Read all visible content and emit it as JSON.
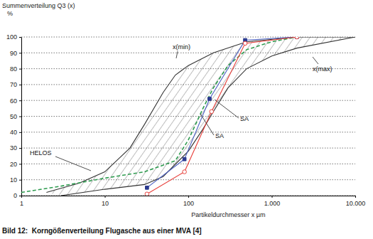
{
  "chart_data": {
    "type": "line",
    "title": "Bild 12:  Korngößenverteilung Flugasche aus einer MVA [4]",
    "ylabel": [
      "Summenverteilung Q3 (x)",
      "%"
    ],
    "xlabel": "Partikeldurchmesser x µm",
    "log": "x",
    "grid": true,
    "xlim": [
      1,
      10000
    ],
    "xticks": [
      1,
      10,
      100,
      {
        "value": 1000,
        "label": "1.000"
      },
      {
        "value": 10000,
        "label": "10.000"
      }
    ],
    "ylim": [
      0,
      100
    ],
    "yticks": [
      0,
      10,
      20,
      30,
      40,
      50,
      60,
      70,
      80,
      90,
      100
    ],
    "series": [
      {
        "name": "x(min)",
        "color": "#333333",
        "line_style": "solid",
        "marker": "none",
        "x": [
          2,
          5,
          10,
          20,
          30,
          50,
          70,
          100,
          200,
          500,
          2000,
          10000
        ],
        "values": [
          2,
          8,
          15,
          30,
          45,
          65,
          76,
          82,
          90,
          97,
          100,
          100
        ]
      },
      {
        "name": "x(max)",
        "color": "#333333",
        "line_style": "solid",
        "marker": "none",
        "x": [
          3,
          10,
          30,
          50,
          100,
          150,
          200,
          300,
          500,
          1000,
          2000,
          10000
        ],
        "values": [
          0,
          4,
          7,
          12,
          28,
          42,
          53,
          68,
          80,
          88,
          93,
          100
        ]
      },
      {
        "name": "HELOS",
        "color": "#2e9b4f",
        "line_style": "dashed",
        "marker": "none",
        "x": [
          1,
          3,
          10,
          30,
          70,
          100,
          150,
          200,
          300,
          500,
          1000,
          2000
        ],
        "values": [
          2,
          6,
          11,
          15,
          22,
          35,
          55,
          68,
          82,
          92,
          97,
          100
        ]
      },
      {
        "name": "SA",
        "color": "#4a5fc1",
        "line_style": "solid",
        "marker": "diamond",
        "x": [
          32,
          90,
          180,
          480,
          2000
        ],
        "values": [
          5,
          23,
          61,
          98,
          100
        ]
      },
      {
        "name": "SA",
        "color": "#e8413c",
        "line_style": "solid",
        "marker": "circle-open",
        "x": [
          32,
          90,
          190,
          480,
          2000
        ],
        "values": [
          1,
          15,
          53,
          96,
          100
        ]
      }
    ]
  }
}
